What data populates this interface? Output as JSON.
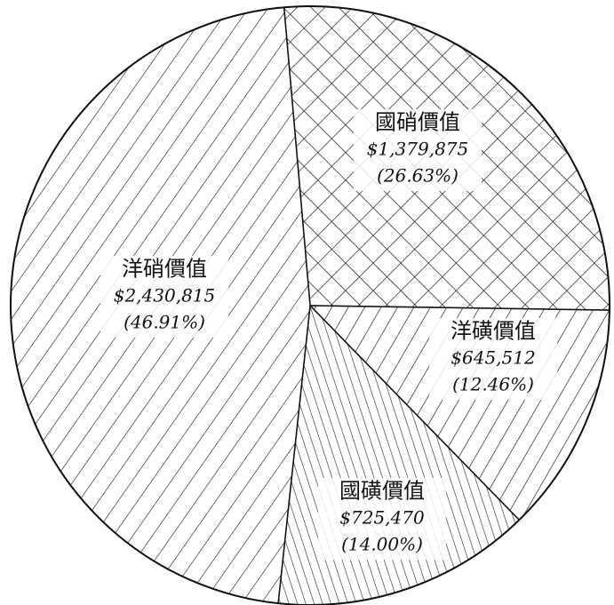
{
  "chart_data": {
    "type": "pie",
    "categories": [
      "國硝價值",
      "洋磺價值",
      "國磺價值",
      "洋硝價值"
    ],
    "values": [
      26.63,
      12.46,
      14.0,
      46.91
    ],
    "value_labels": [
      "(26.63%)",
      "(12.46%)",
      "(14.00%)",
      "(46.91%)"
    ],
    "amount_labels": [
      "$1,379,875",
      "$645,512",
      "$725,470",
      "$2,430,815"
    ],
    "color": "#111111"
  }
}
